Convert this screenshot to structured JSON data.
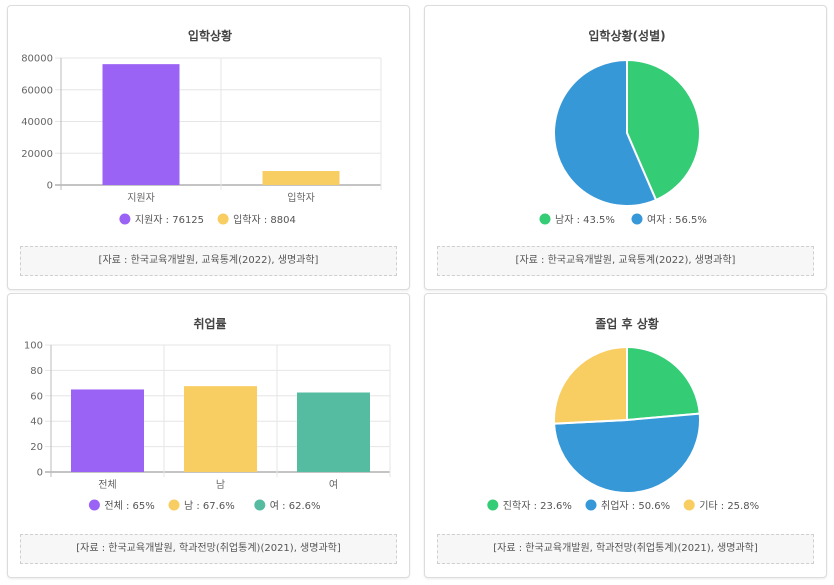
{
  "chart_data": [
    {
      "type": "bar",
      "title": "입학상황",
      "categories": [
        "지원자",
        "입학자"
      ],
      "values": [
        76125,
        8804
      ],
      "colors": [
        "#9a63f5",
        "#f8cd62"
      ],
      "ylim": [
        0,
        80000
      ],
      "yticks": [
        0,
        20000,
        40000,
        60000,
        80000
      ],
      "legend": [
        "지원자 : 76125",
        "입학자 : 8804"
      ],
      "source": "[자료 : 한국교육개발원, 교육통계(2022), 생명과학]"
    },
    {
      "type": "pie",
      "title": "입학상황(성별)",
      "labels": [
        "남자",
        "여자"
      ],
      "values": [
        43.5,
        56.5
      ],
      "colors": [
        "#35cc76",
        "#3798d8"
      ],
      "legend": [
        "남자 : 43.5%",
        "여자 : 56.5%"
      ],
      "source": "[자료 : 한국교육개발원, 교육통계(2022), 생명과학]"
    },
    {
      "type": "bar",
      "title": "취업률",
      "categories": [
        "전체",
        "남",
        "여"
      ],
      "values": [
        65,
        67.6,
        62.6
      ],
      "colors": [
        "#9a63f5",
        "#f8cd62",
        "#56bca1"
      ],
      "ylim": [
        0,
        100
      ],
      "yticks": [
        0,
        20,
        40,
        60,
        80,
        100
      ],
      "legend": [
        "전체 : 65%",
        "남 : 67.6%",
        "여 : 62.6%"
      ],
      "source": "[자료 : 한국교육개발원, 학과전망(취업통계)(2021), 생명과학]"
    },
    {
      "type": "pie",
      "title": "졸업 후 상황",
      "labels": [
        "진학자",
        "취업자",
        "기타"
      ],
      "values": [
        23.6,
        50.6,
        25.8
      ],
      "colors": [
        "#35cc76",
        "#3798d8",
        "#f8cd62"
      ],
      "legend": [
        "진학자 : 23.6%",
        "취업자 : 50.6%",
        "기타 : 25.8%"
      ],
      "source": "[자료 : 한국교육개발원, 학과전망(취업통계)(2021), 생명과학]"
    }
  ]
}
